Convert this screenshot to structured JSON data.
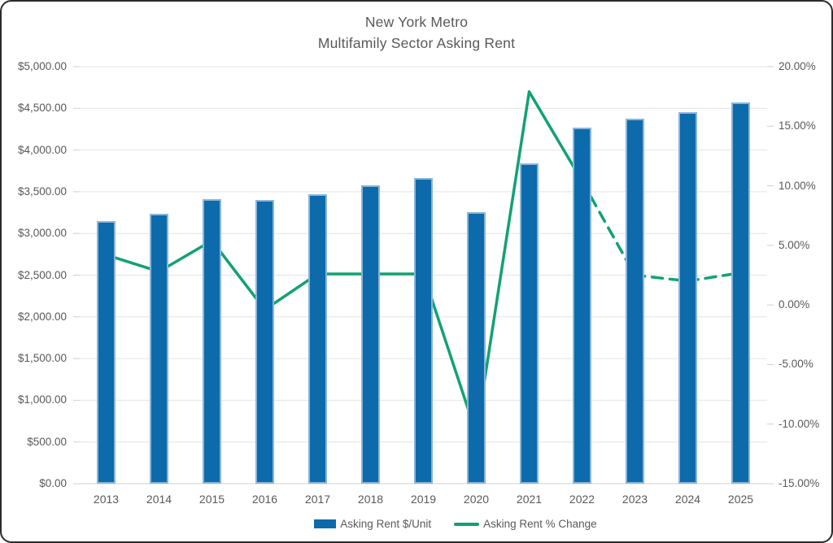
{
  "title": {
    "line1": "New York Metro",
    "line2": "Multifamily Sector Asking Rent"
  },
  "legend": {
    "items": [
      {
        "label": "Asking Rent $/Unit",
        "swatch": "bar"
      },
      {
        "label": "Asking Rent % Change",
        "swatch": "line"
      }
    ]
  },
  "chart_data": {
    "type": "bar",
    "subtype": "combo-bar-line-dual-axis",
    "title": "New York Metro Multifamily Sector Asking Rent",
    "categories": [
      "2013",
      "2014",
      "2015",
      "2016",
      "2017",
      "2018",
      "2019",
      "2020",
      "2021",
      "2022",
      "2023",
      "2024",
      "2025"
    ],
    "series": [
      {
        "name": "Asking Rent $/Unit",
        "type": "bar",
        "axis": "left",
        "values": [
          3145,
          3235,
          3410,
          3400,
          3470,
          3575,
          3670,
          3260,
          3840,
          4265,
          4375,
          4455,
          4575
        ]
      },
      {
        "name": "Asking Rent % Change",
        "type": "line",
        "axis": "right",
        "values": [
          4.2,
          2.8,
          5.4,
          -0.4,
          2.6,
          2.6,
          2.6,
          -10.8,
          17.9,
          10.4,
          2.5,
          2.0,
          2.7
        ],
        "solid_until_index": 9,
        "dashed_from_index": 9,
        "dash_note": "line is dashed (forecast) from 2022 through 2025"
      }
    ],
    "left_axis": {
      "min": 0,
      "max": 5000,
      "step": 500,
      "format": "$#,##0.00",
      "tick_labels": [
        "$0.00",
        "$500.00",
        "$1,000.00",
        "$1,500.00",
        "$2,000.00",
        "$2,500.00",
        "$3,000.00",
        "$3,500.00",
        "$4,000.00",
        "$4,500.00",
        "$5,000.00"
      ]
    },
    "right_axis": {
      "min": -15,
      "max": 20,
      "step": 5,
      "format": "0.00%",
      "tick_labels": [
        "-15.00%",
        "-10.00%",
        "-5.00%",
        "0.00%",
        "5.00%",
        "10.00%",
        "15.00%",
        "20.00%"
      ]
    },
    "grid": true,
    "legend_position": "bottom",
    "colors": {
      "bar_fill": "#0d6aab",
      "bar_border": "#8ab5da",
      "line": "#12a173",
      "text": "#595959",
      "gridline": "#e4e4e4",
      "axis_line": "#cfcfcf"
    }
  }
}
